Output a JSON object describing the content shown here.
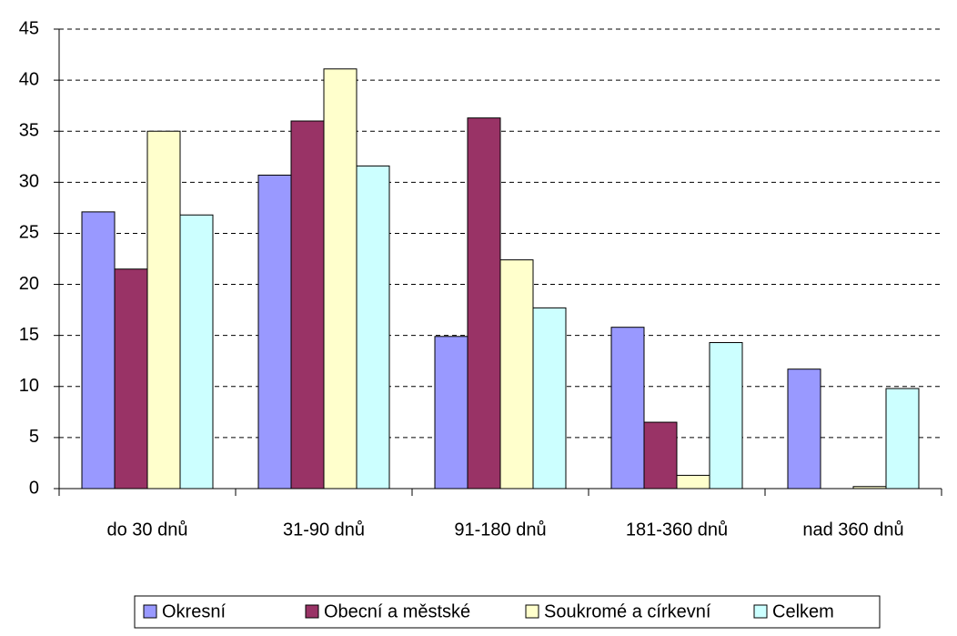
{
  "chart_data": {
    "type": "bar",
    "categories": [
      "do 30 dnů",
      "31-90 dnů",
      "91-180 dnů",
      "181-360 dnů",
      "nad 360 dnů"
    ],
    "series": [
      {
        "name": "Okresní",
        "color": "#9999ff",
        "values": [
          27.1,
          30.7,
          14.9,
          15.8,
          11.7
        ]
      },
      {
        "name": "Obecní a městské",
        "color": "#993366",
        "values": [
          21.5,
          36.0,
          36.3,
          6.5,
          0
        ]
      },
      {
        "name": "Soukromé a církevní",
        "color": "#ffffcc",
        "values": [
          35.0,
          41.1,
          22.4,
          1.3,
          0.2
        ]
      },
      {
        "name": "Celkem",
        "color": "#ccffff",
        "values": [
          26.8,
          31.6,
          17.7,
          14.3,
          9.8
        ]
      }
    ],
    "ylim": [
      0,
      45
    ],
    "yticks": [
      0,
      5,
      10,
      15,
      20,
      25,
      30,
      35,
      40,
      45
    ],
    "grid": true,
    "legend": "bottom"
  }
}
